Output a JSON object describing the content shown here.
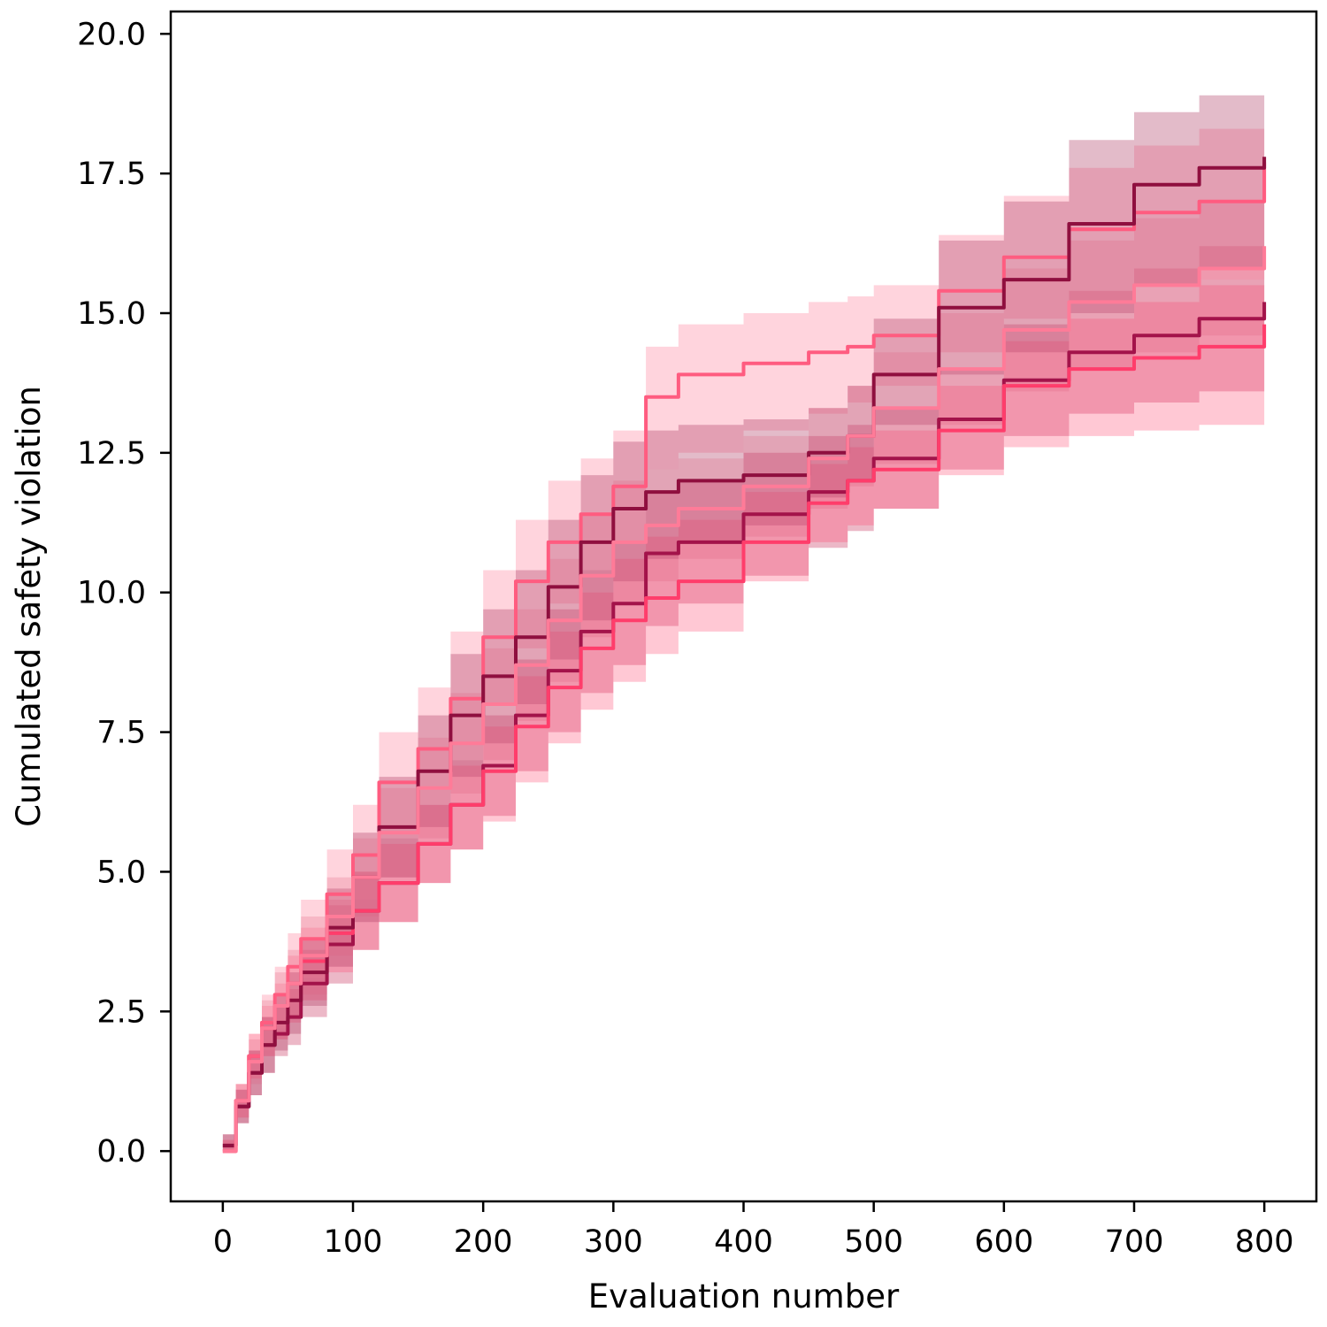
{
  "chart_data": {
    "type": "line",
    "xlabel": "Evaluation number",
    "ylabel": "Cumulated safety violation",
    "xlim": [
      -40,
      840
    ],
    "ylim": [
      -0.9,
      20.4
    ],
    "xticks": [
      0,
      100,
      200,
      300,
      400,
      500,
      600,
      700,
      800
    ],
    "xtick_labels": [
      "0",
      "100",
      "200",
      "300",
      "400",
      "500",
      "600",
      "700",
      "800"
    ],
    "yticks": [
      0,
      2.5,
      5,
      7.5,
      10,
      12.5,
      15,
      17.5,
      20
    ],
    "ytick_labels": [
      "0.0",
      "2.5",
      "5.0",
      "7.5",
      "10.0",
      "12.5",
      "15.0",
      "17.5",
      "20.0"
    ],
    "grid": false,
    "legend": null,
    "x": [
      0,
      10,
      20,
      30,
      40,
      50,
      60,
      80,
      100,
      120,
      150,
      175,
      200,
      225,
      250,
      275,
      300,
      325,
      350,
      400,
      450,
      480,
      500,
      550,
      600,
      650,
      700,
      750,
      800
    ],
    "series": [
      {
        "color": "#a3134a",
        "values": [
          0.1,
          0.8,
          1.4,
          1.9,
          2.1,
          2.4,
          3.0,
          3.7,
          4.3,
          4.8,
          5.5,
          6.2,
          6.9,
          7.8,
          8.6,
          9.3,
          9.8,
          10.7,
          10.9,
          11.4,
          11.8,
          12.0,
          12.4,
          13.1,
          13.8,
          14.3,
          14.6,
          14.9,
          15.2
        ],
        "band_lower": [
          0.0,
          0.5,
          1.0,
          1.4,
          1.7,
          1.9,
          2.4,
          3.0,
          3.6,
          4.1,
          4.8,
          5.4,
          6.0,
          6.8,
          7.5,
          8.2,
          8.7,
          9.4,
          9.8,
          10.3,
          10.8,
          11.1,
          11.5,
          12.2,
          12.8,
          13.2,
          13.4,
          13.6,
          13.8
        ],
        "band_upper": [
          0.3,
          1.1,
          1.8,
          2.4,
          2.6,
          2.9,
          3.6,
          4.4,
          5.0,
          5.6,
          6.2,
          7.0,
          7.8,
          8.8,
          9.7,
          10.4,
          10.9,
          11.8,
          12.0,
          12.5,
          12.8,
          13.0,
          13.3,
          14.0,
          14.8,
          15.4,
          15.8,
          16.2,
          16.7
        ],
        "band_color": "#c8345f",
        "band_opacity": 0.35
      },
      {
        "color": "#ff3d6b",
        "values": [
          0.0,
          0.9,
          1.7,
          2.2,
          2.6,
          3.0,
          3.4,
          3.9,
          4.3,
          4.8,
          5.5,
          6.2,
          6.8,
          7.6,
          8.3,
          9.0,
          9.5,
          9.9,
          10.2,
          10.9,
          11.6,
          12.0,
          12.2,
          12.9,
          13.7,
          14.0,
          14.2,
          14.4,
          14.8
        ],
        "band_lower": [
          0.0,
          0.6,
          1.3,
          1.7,
          2.0,
          2.3,
          2.7,
          3.2,
          3.6,
          4.1,
          4.8,
          5.4,
          5.9,
          6.6,
          7.3,
          7.9,
          8.4,
          8.9,
          9.3,
          10.2,
          10.9,
          11.2,
          11.5,
          12.1,
          12.6,
          12.8,
          12.9,
          13.0,
          13.4
        ],
        "band_upper": [
          0.2,
          1.2,
          2.1,
          2.6,
          3.0,
          3.5,
          4.0,
          4.5,
          5.0,
          5.5,
          6.2,
          6.9,
          7.6,
          8.5,
          9.3,
          10.0,
          10.6,
          11.0,
          11.3,
          11.8,
          12.3,
          12.6,
          12.9,
          13.7,
          14.5,
          14.9,
          15.2,
          15.5,
          15.9
        ],
        "band_color": "#ff4a72",
        "band_opacity": 0.3
      },
      {
        "color": "#ff5c80",
        "values": [
          0.0,
          0.9,
          1.7,
          2.3,
          2.8,
          3.3,
          3.8,
          4.6,
          5.3,
          6.6,
          7.2,
          8.1,
          9.2,
          10.2,
          10.9,
          11.4,
          11.9,
          13.5,
          13.9,
          14.1,
          14.3,
          14.4,
          14.6,
          15.4,
          16.0,
          16.5,
          16.8,
          17.0,
          17.7
        ],
        "band_lower": [
          0.0,
          0.6,
          1.3,
          1.8,
          2.2,
          2.7,
          3.1,
          3.9,
          4.5,
          5.6,
          6.2,
          7.0,
          8.0,
          9.0,
          9.8,
          10.4,
          10.9,
          12.2,
          12.5,
          12.9,
          13.2,
          13.4,
          13.7,
          14.3,
          14.9,
          15.2,
          15.5,
          15.6,
          16.1
        ],
        "band_upper": [
          0.2,
          1.2,
          2.1,
          2.8,
          3.3,
          3.9,
          4.5,
          5.4,
          6.2,
          7.5,
          8.3,
          9.3,
          10.4,
          11.3,
          12.0,
          12.4,
          12.9,
          14.4,
          14.8,
          15.0,
          15.2,
          15.3,
          15.5,
          16.4,
          17.1,
          17.6,
          18.0,
          18.3,
          19.3
        ],
        "band_color": "#ffa0b4",
        "band_opacity": 0.45
      },
      {
        "color": "#8f0f3f",
        "values": [
          0.1,
          0.8,
          1.4,
          1.9,
          2.3,
          2.7,
          3.2,
          4.0,
          4.9,
          5.8,
          6.8,
          7.8,
          8.5,
          9.2,
          10.1,
          10.9,
          11.5,
          11.8,
          12.0,
          12.1,
          12.5,
          12.8,
          13.9,
          15.1,
          15.6,
          16.6,
          17.3,
          17.6,
          17.8
        ],
        "band_lower": [
          0.0,
          0.5,
          1.0,
          1.4,
          1.8,
          2.1,
          2.6,
          3.3,
          4.1,
          4.9,
          5.8,
          6.7,
          7.3,
          8.0,
          8.8,
          9.5,
          10.2,
          10.6,
          10.9,
          11.2,
          11.7,
          12.0,
          13.0,
          13.9,
          14.3,
          15.0,
          15.5,
          15.8,
          16.1
        ],
        "band_upper": [
          0.3,
          1.1,
          1.8,
          2.4,
          2.8,
          3.2,
          3.8,
          4.7,
          5.7,
          6.7,
          7.8,
          8.9,
          9.7,
          10.4,
          11.3,
          12.1,
          12.7,
          12.9,
          13.0,
          13.1,
          13.3,
          13.7,
          14.9,
          16.3,
          17.0,
          18.1,
          18.6,
          18.9,
          19.3
        ],
        "band_color": "#b03c63",
        "band_opacity": 0.35
      },
      {
        "color": "#ff7b98",
        "values": [
          0.0,
          0.9,
          1.6,
          2.2,
          2.6,
          3.0,
          3.5,
          4.2,
          4.9,
          5.7,
          6.5,
          7.3,
          8.0,
          8.7,
          9.5,
          10.3,
          10.9,
          11.2,
          11.5,
          11.9,
          12.4,
          12.8,
          13.3,
          14.0,
          14.7,
          15.2,
          15.5,
          15.8,
          16.2
        ],
        "band_lower": [
          0.0,
          0.6,
          1.2,
          1.7,
          2.0,
          2.4,
          2.8,
          3.5,
          4.2,
          4.9,
          5.6,
          6.4,
          7.0,
          7.7,
          8.4,
          9.2,
          9.8,
          10.2,
          10.6,
          11.0,
          11.5,
          11.9,
          12.3,
          13.0,
          13.6,
          14.0,
          14.3,
          14.6,
          14.9
        ],
        "band_upper": [
          0.2,
          1.2,
          2.0,
          2.7,
          3.2,
          3.6,
          4.2,
          4.9,
          5.6,
          6.5,
          7.4,
          8.2,
          9.0,
          9.7,
          10.6,
          11.4,
          12.0,
          12.2,
          12.4,
          12.8,
          13.3,
          13.7,
          14.3,
          15.0,
          15.8,
          16.3,
          16.7,
          17.0,
          17.3
        ],
        "band_color": "#e0607f",
        "band_opacity": 0.25
      }
    ]
  }
}
